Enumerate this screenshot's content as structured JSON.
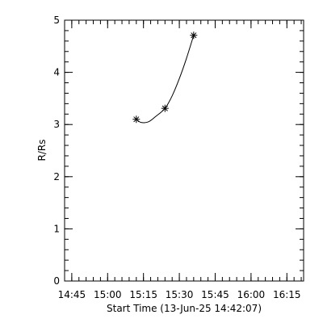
{
  "chart_data": {
    "type": "line",
    "title": "",
    "xlabel": "Start Time (13-Jun-25 14:42:07)",
    "ylabel": "R/Rs",
    "xlim": [
      "14:42",
      "16:22"
    ],
    "ylim": [
      0,
      5
    ],
    "x_ticks": [
      "14:45",
      "15:00",
      "15:15",
      "15:30",
      "15:45",
      "16:00",
      "16:15"
    ],
    "y_ticks": [
      "0",
      "1",
      "2",
      "3",
      "4",
      "5"
    ],
    "grid": false,
    "series": [
      {
        "marker": "asterisk",
        "points": [
          {
            "x": "15:12",
            "y": 3.1
          },
          {
            "x": "15:24",
            "y": 3.31
          },
          {
            "x": "15:36",
            "y": 4.71
          }
        ],
        "fit_curve": [
          {
            "x": "15:12",
            "y": 3.1
          },
          {
            "x": "15:14",
            "y": 3.04
          },
          {
            "x": "15:17",
            "y": 3.05
          },
          {
            "x": "15:20",
            "y": 3.15
          },
          {
            "x": "15:24",
            "y": 3.31
          },
          {
            "x": "15:27",
            "y": 3.55
          },
          {
            "x": "15:30",
            "y": 3.88
          },
          {
            "x": "15:33",
            "y": 4.27
          },
          {
            "x": "15:36",
            "y": 4.71
          }
        ]
      }
    ]
  }
}
